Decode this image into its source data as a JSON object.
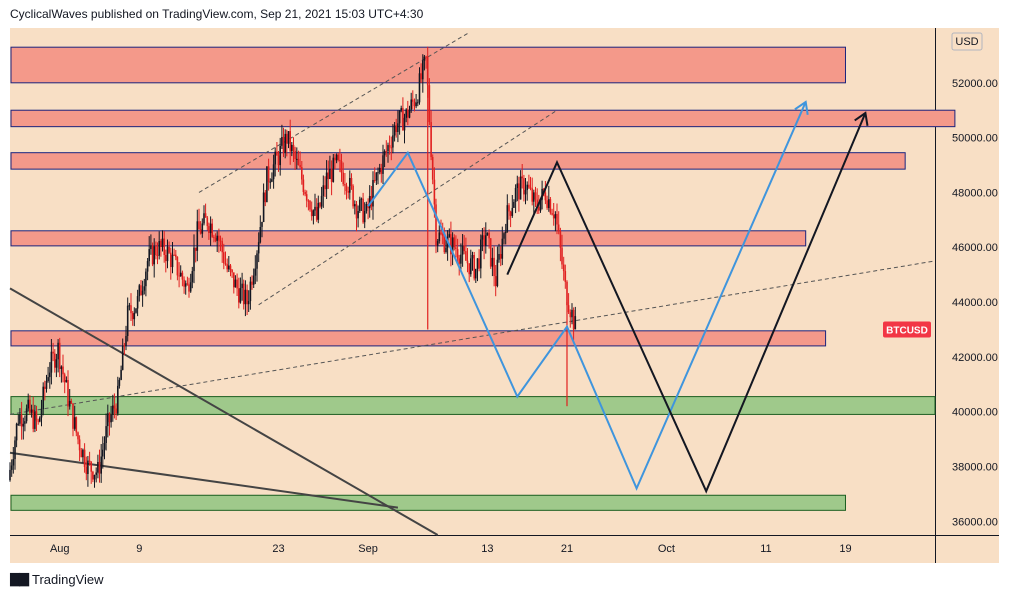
{
  "header": {
    "text": "CyclicalWaves published on TradingView.com, Sep 21, 2021 15:03 UTC+4:30"
  },
  "footer": {
    "brand": "TradingView",
    "logo_icon": "tradingview-logo-icon"
  },
  "price_scale": {
    "currency": "USD"
  },
  "symbol_badge": {
    "label": "BTCUSD",
    "value": 43000,
    "color": "#f23645"
  },
  "colors": {
    "background": "#f8dfc5",
    "resistance_zone_fill": "#f4998a",
    "resistance_zone_border": "#1a237e",
    "support_zone_fill": "#9fc98b",
    "support_zone_border": "#1b5e20",
    "candle_up": "#131722",
    "candle_down": "#e01f1f",
    "projection_blue": "#3f95dd",
    "projection_black": "#131722",
    "trendline_gray": "#555555"
  },
  "chart_data": {
    "type": "candlestick",
    "title": "",
    "y_axis": {
      "label": "",
      "min": 35500,
      "max": 54000,
      "ticks": [
        "52000.00",
        "50000.00",
        "48000.00",
        "46000.00",
        "44000.00",
        "42000.00",
        "40000.00",
        "38000.00",
        "36000.00"
      ]
    },
    "x_axis": {
      "start": "2021-07-27",
      "end": "2021-10-28",
      "ticks": [
        {
          "date": "2021-08-01",
          "label": "Aug"
        },
        {
          "date": "2021-08-09",
          "label": "9"
        },
        {
          "date": "2021-08-23",
          "label": "23"
        },
        {
          "date": "2021-09-01",
          "label": "Sep"
        },
        {
          "date": "2021-09-13",
          "label": "13"
        },
        {
          "date": "2021-09-21",
          "label": "21"
        },
        {
          "date": "2021-10-01",
          "label": "Oct"
        },
        {
          "date": "2021-10-11",
          "label": "11"
        },
        {
          "date": "2021-10-19",
          "label": "19"
        }
      ]
    },
    "price_path": [
      [
        "2021-07-27",
        37500
      ],
      [
        "2021-07-28",
        39800
      ],
      [
        "2021-07-29",
        40000
      ],
      [
        "2021-07-30",
        39500
      ],
      [
        "2021-07-31",
        41500
      ],
      [
        "2021-08-01",
        42300
      ],
      [
        "2021-08-02",
        40500
      ],
      [
        "2021-08-03",
        39000
      ],
      [
        "2021-08-04",
        38000
      ],
      [
        "2021-08-05",
        37800
      ],
      [
        "2021-08-06",
        39500
      ],
      [
        "2021-08-07",
        40500
      ],
      [
        "2021-08-08",
        43500
      ],
      [
        "2021-08-09",
        44000
      ],
      [
        "2021-08-10",
        45500
      ],
      [
        "2021-08-11",
        46000
      ],
      [
        "2021-08-12",
        45800
      ],
      [
        "2021-08-13",
        45200
      ],
      [
        "2021-08-14",
        44500
      ],
      [
        "2021-08-15",
        46500
      ],
      [
        "2021-08-16",
        47000
      ],
      [
        "2021-08-17",
        46500
      ],
      [
        "2021-08-18",
        45200
      ],
      [
        "2021-08-19",
        44500
      ],
      [
        "2021-08-20",
        44000
      ],
      [
        "2021-08-21",
        46000
      ],
      [
        "2021-08-22",
        48500
      ],
      [
        "2021-08-23",
        49200
      ],
      [
        "2021-08-24",
        50000
      ],
      [
        "2021-08-25",
        49000
      ],
      [
        "2021-08-26",
        48000
      ],
      [
        "2021-08-27",
        47000
      ],
      [
        "2021-08-28",
        48500
      ],
      [
        "2021-08-29",
        49000
      ],
      [
        "2021-08-30",
        48500
      ],
      [
        "2021-08-31",
        47500
      ],
      [
        "2021-09-01",
        47200
      ],
      [
        "2021-09-02",
        48500
      ],
      [
        "2021-09-03",
        49500
      ],
      [
        "2021-09-04",
        50500
      ],
      [
        "2021-09-05",
        50800
      ],
      [
        "2021-09-06",
        51500
      ],
      [
        "2021-09-07",
        52800
      ],
      [
        "2021-09-08",
        46500
      ],
      [
        "2021-09-09",
        46200
      ],
      [
        "2021-09-10",
        46000
      ],
      [
        "2021-09-11",
        45500
      ],
      [
        "2021-09-12",
        45200
      ],
      [
        "2021-09-13",
        46500
      ],
      [
        "2021-09-14",
        44800
      ],
      [
        "2021-09-15",
        47000
      ],
      [
        "2021-09-16",
        48000
      ],
      [
        "2021-09-17",
        48300
      ],
      [
        "2021-09-18",
        47500
      ],
      [
        "2021-09-19",
        48000
      ],
      [
        "2021-09-20",
        47200
      ],
      [
        "2021-09-21",
        44500
      ],
      [
        "2021-09-22",
        43100
      ]
    ],
    "series": [
      {
        "name": "",
        "type": "horizontal_zone",
        "kind": "resistance",
        "y_low": 52000,
        "y_high": 53300,
        "x_end": "2021-10-19"
      },
      {
        "name": "",
        "type": "horizontal_zone",
        "kind": "resistance",
        "y_low": 50400,
        "y_high": 51000,
        "x_end": "2021-10-30"
      },
      {
        "name": "",
        "type": "horizontal_zone",
        "kind": "resistance",
        "y_low": 48850,
        "y_high": 49450,
        "x_end": "2021-10-25"
      },
      {
        "name": "",
        "type": "horizontal_zone",
        "kind": "resistance",
        "y_low": 46050,
        "y_high": 46600,
        "x_end": "2021-10-15"
      },
      {
        "name": "",
        "type": "horizontal_zone",
        "kind": "resistance",
        "y_low": 42400,
        "y_high": 42950,
        "x_end": "2021-10-17"
      },
      {
        "name": "",
        "type": "horizontal_zone",
        "kind": "support",
        "y_low": 39900,
        "y_high": 40550,
        "x_end": "2021-10-28"
      },
      {
        "name": "",
        "type": "horizontal_zone",
        "kind": "support",
        "y_low": 36400,
        "y_high": 36950,
        "x_end": "2021-10-19"
      },
      {
        "name": "",
        "type": "projection",
        "color": "blue",
        "points": [
          [
            "2021-09-01",
            47500
          ],
          [
            "2021-09-05",
            49450
          ],
          [
            "2021-09-16",
            40550
          ],
          [
            "2021-09-21",
            43100
          ],
          [
            "2021-09-28",
            37200
          ],
          [
            "2021-10-15",
            51300
          ]
        ]
      },
      {
        "name": "",
        "type": "projection",
        "color": "black",
        "points": [
          [
            "2021-09-15",
            45000
          ],
          [
            "2021-09-20",
            49100
          ],
          [
            "2021-10-05",
            37100
          ],
          [
            "2021-10-21",
            50900
          ]
        ]
      },
      {
        "name": "",
        "type": "trendline",
        "style": "dashed",
        "points": [
          [
            "2021-07-27",
            39900
          ],
          [
            "2021-10-28",
            45500
          ]
        ]
      },
      {
        "name": "",
        "type": "trendline",
        "style": "dashed",
        "points": [
          [
            "2021-08-15",
            48000
          ],
          [
            "2021-09-11",
            53800
          ]
        ]
      },
      {
        "name": "",
        "type": "trendline",
        "style": "dashed",
        "points": [
          [
            "2021-08-21",
            43900
          ],
          [
            "2021-09-20",
            51000
          ]
        ]
      },
      {
        "name": "",
        "type": "trendline",
        "style": "solid",
        "points": [
          [
            "2021-07-27",
            44500
          ],
          [
            "2021-09-08",
            35500
          ]
        ]
      },
      {
        "name": "",
        "type": "trendline",
        "style": "solid",
        "points": [
          [
            "2021-07-27",
            38500
          ],
          [
            "2021-09-04",
            36500
          ]
        ]
      }
    ],
    "grid": false,
    "legend": "none"
  }
}
